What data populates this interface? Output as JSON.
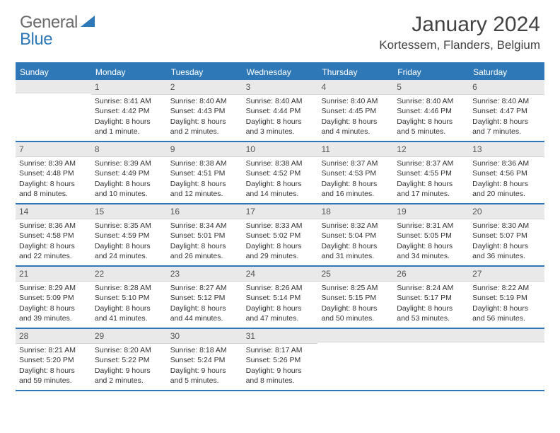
{
  "logo": {
    "general": "General",
    "blue": "Blue",
    "shape_color": "#2f78b7"
  },
  "title": "January 2024",
  "location": "Kortessem, Flanders, Belgium",
  "colors": {
    "header_bg": "#2f78b7",
    "header_text": "#ffffff",
    "daynum_bg": "#e9e9e9",
    "border": "#2f78b7"
  },
  "daynames": [
    "Sunday",
    "Monday",
    "Tuesday",
    "Wednesday",
    "Thursday",
    "Friday",
    "Saturday"
  ],
  "weeks": [
    [
      {
        "n": "",
        "sunrise": "",
        "sunset": "",
        "daylight": ""
      },
      {
        "n": "1",
        "sunrise": "8:41 AM",
        "sunset": "4:42 PM",
        "daylight": "8 hours and 1 minute."
      },
      {
        "n": "2",
        "sunrise": "8:40 AM",
        "sunset": "4:43 PM",
        "daylight": "8 hours and 2 minutes."
      },
      {
        "n": "3",
        "sunrise": "8:40 AM",
        "sunset": "4:44 PM",
        "daylight": "8 hours and 3 minutes."
      },
      {
        "n": "4",
        "sunrise": "8:40 AM",
        "sunset": "4:45 PM",
        "daylight": "8 hours and 4 minutes."
      },
      {
        "n": "5",
        "sunrise": "8:40 AM",
        "sunset": "4:46 PM",
        "daylight": "8 hours and 5 minutes."
      },
      {
        "n": "6",
        "sunrise": "8:40 AM",
        "sunset": "4:47 PM",
        "daylight": "8 hours and 7 minutes."
      }
    ],
    [
      {
        "n": "7",
        "sunrise": "8:39 AM",
        "sunset": "4:48 PM",
        "daylight": "8 hours and 8 minutes."
      },
      {
        "n": "8",
        "sunrise": "8:39 AM",
        "sunset": "4:49 PM",
        "daylight": "8 hours and 10 minutes."
      },
      {
        "n": "9",
        "sunrise": "8:38 AM",
        "sunset": "4:51 PM",
        "daylight": "8 hours and 12 minutes."
      },
      {
        "n": "10",
        "sunrise": "8:38 AM",
        "sunset": "4:52 PM",
        "daylight": "8 hours and 14 minutes."
      },
      {
        "n": "11",
        "sunrise": "8:37 AM",
        "sunset": "4:53 PM",
        "daylight": "8 hours and 16 minutes."
      },
      {
        "n": "12",
        "sunrise": "8:37 AM",
        "sunset": "4:55 PM",
        "daylight": "8 hours and 17 minutes."
      },
      {
        "n": "13",
        "sunrise": "8:36 AM",
        "sunset": "4:56 PM",
        "daylight": "8 hours and 20 minutes."
      }
    ],
    [
      {
        "n": "14",
        "sunrise": "8:36 AM",
        "sunset": "4:58 PM",
        "daylight": "8 hours and 22 minutes."
      },
      {
        "n": "15",
        "sunrise": "8:35 AM",
        "sunset": "4:59 PM",
        "daylight": "8 hours and 24 minutes."
      },
      {
        "n": "16",
        "sunrise": "8:34 AM",
        "sunset": "5:01 PM",
        "daylight": "8 hours and 26 minutes."
      },
      {
        "n": "17",
        "sunrise": "8:33 AM",
        "sunset": "5:02 PM",
        "daylight": "8 hours and 29 minutes."
      },
      {
        "n": "18",
        "sunrise": "8:32 AM",
        "sunset": "5:04 PM",
        "daylight": "8 hours and 31 minutes."
      },
      {
        "n": "19",
        "sunrise": "8:31 AM",
        "sunset": "5:05 PM",
        "daylight": "8 hours and 34 minutes."
      },
      {
        "n": "20",
        "sunrise": "8:30 AM",
        "sunset": "5:07 PM",
        "daylight": "8 hours and 36 minutes."
      }
    ],
    [
      {
        "n": "21",
        "sunrise": "8:29 AM",
        "sunset": "5:09 PM",
        "daylight": "8 hours and 39 minutes."
      },
      {
        "n": "22",
        "sunrise": "8:28 AM",
        "sunset": "5:10 PM",
        "daylight": "8 hours and 41 minutes."
      },
      {
        "n": "23",
        "sunrise": "8:27 AM",
        "sunset": "5:12 PM",
        "daylight": "8 hours and 44 minutes."
      },
      {
        "n": "24",
        "sunrise": "8:26 AM",
        "sunset": "5:14 PM",
        "daylight": "8 hours and 47 minutes."
      },
      {
        "n": "25",
        "sunrise": "8:25 AM",
        "sunset": "5:15 PM",
        "daylight": "8 hours and 50 minutes."
      },
      {
        "n": "26",
        "sunrise": "8:24 AM",
        "sunset": "5:17 PM",
        "daylight": "8 hours and 53 minutes."
      },
      {
        "n": "27",
        "sunrise": "8:22 AM",
        "sunset": "5:19 PM",
        "daylight": "8 hours and 56 minutes."
      }
    ],
    [
      {
        "n": "28",
        "sunrise": "8:21 AM",
        "sunset": "5:20 PM",
        "daylight": "8 hours and 59 minutes."
      },
      {
        "n": "29",
        "sunrise": "8:20 AM",
        "sunset": "5:22 PM",
        "daylight": "9 hours and 2 minutes."
      },
      {
        "n": "30",
        "sunrise": "8:18 AM",
        "sunset": "5:24 PM",
        "daylight": "9 hours and 5 minutes."
      },
      {
        "n": "31",
        "sunrise": "8:17 AM",
        "sunset": "5:26 PM",
        "daylight": "9 hours and 8 minutes."
      },
      {
        "n": "",
        "sunrise": "",
        "sunset": "",
        "daylight": ""
      },
      {
        "n": "",
        "sunrise": "",
        "sunset": "",
        "daylight": ""
      },
      {
        "n": "",
        "sunrise": "",
        "sunset": "",
        "daylight": ""
      }
    ]
  ],
  "labels": {
    "sunrise": "Sunrise:",
    "sunset": "Sunset:",
    "daylight": "Daylight:"
  }
}
